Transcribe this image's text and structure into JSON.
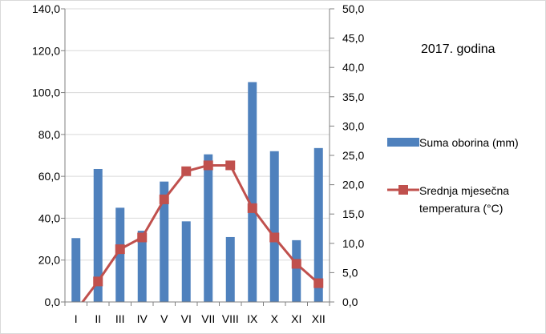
{
  "chart_data": {
    "type": "bar+line",
    "title": "2017. godina",
    "categories": [
      "I",
      "II",
      "III",
      "IV",
      "V",
      "VI",
      "VII",
      "VIII",
      "IX",
      "X",
      "XI",
      "XII"
    ],
    "series": [
      {
        "name": "Suma oborina (mm)",
        "type": "bar",
        "axis": "left",
        "color": "#4f81bd",
        "values": [
          30.5,
          63.5,
          45.0,
          34.0,
          57.5,
          38.5,
          70.5,
          31.0,
          105.0,
          72.0,
          29.5,
          73.5
        ]
      },
      {
        "name": "Srednja mjesečna temperatura (°C)",
        "name_lines": [
          "Srednja mjesečna",
          "temperatura (°C)"
        ],
        "type": "line",
        "axis": "right",
        "color": "#c0504d",
        "values": [
          -1.5,
          3.5,
          9.0,
          11.0,
          17.5,
          22.3,
          23.3,
          23.3,
          16.0,
          11.0,
          6.5,
          3.2
        ]
      }
    ],
    "y_left": {
      "min": 0,
      "max": 140,
      "step": 20,
      "ticks": [
        "0,0",
        "20,0",
        "40,0",
        "60,0",
        "80,0",
        "100,0",
        "120,0",
        "140,0"
      ]
    },
    "y_right": {
      "min": 0,
      "max": 50,
      "step": 5,
      "ticks": [
        "0,0",
        "5,0",
        "10,0",
        "15,0",
        "20,0",
        "25,0",
        "30,0",
        "35,0",
        "40,0",
        "45,0",
        "50,0"
      ]
    },
    "grid": true,
    "legend_position": "right"
  }
}
